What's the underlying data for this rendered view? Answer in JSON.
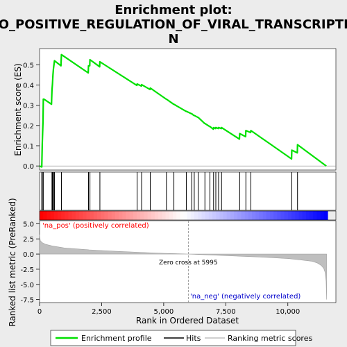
{
  "title_lines": [
    "Enrichment plot:",
    "GO_POSITIVE_REGULATION_OF_VIRAL_TRANSCRIPTIO",
    "N"
  ],
  "colors": {
    "background": "#ececec",
    "es_line": "#00e000",
    "hits": "#000000",
    "ranking_fill": "#bfbfbf",
    "zero_cross_line": "#9f9f9f",
    "pos_label": "#ff0000",
    "neg_label": "#0000cc"
  },
  "chart_data": [
    {
      "type": "line",
      "name": "enrichment-profile",
      "ylabel": "Enrichment score (ES)",
      "xlim": [
        0,
        11600
      ],
      "ylim": [
        -0.02,
        0.58
      ],
      "yticks": [
        {
          "value": 0.0,
          "label": "0.0"
        },
        {
          "value": 0.1,
          "label": "0.1"
        },
        {
          "value": 0.2,
          "label": "0.2"
        },
        {
          "value": 0.3,
          "label": "0.3"
        },
        {
          "value": 0.4,
          "label": "0.4"
        },
        {
          "value": 0.5,
          "label": "0.5"
        }
      ],
      "grid": false,
      "x": [
        0,
        90,
        110,
        140,
        150,
        180,
        480,
        500,
        520,
        540,
        560,
        600,
        860,
        880,
        1960,
        1970,
        2020,
        2030,
        2420,
        2430,
        3920,
        3930,
        4100,
        4110,
        4450,
        4460,
        5100,
        5110,
        5400,
        5410,
        5900,
        5910,
        6120,
        6130,
        6210,
        6230,
        6380,
        6390,
        6650,
        6660,
        6850,
        6860,
        7000,
        7010,
        7090,
        7100,
        7200,
        7210,
        7320,
        7330,
        8050,
        8060,
        8300,
        8310,
        8500,
        8510,
        10150,
        10160,
        10380,
        10390,
        11550
      ],
      "y": [
        0.0,
        -0.005,
        0.11,
        0.22,
        0.33,
        0.33,
        0.305,
        0.375,
        0.405,
        0.45,
        0.48,
        0.52,
        0.495,
        0.55,
        0.46,
        0.495,
        0.495,
        0.525,
        0.49,
        0.515,
        0.398,
        0.405,
        0.395,
        0.402,
        0.378,
        0.385,
        0.33,
        0.33,
        0.305,
        0.305,
        0.27,
        0.27,
        0.258,
        0.258,
        0.25,
        0.25,
        0.24,
        0.24,
        0.21,
        0.21,
        0.195,
        0.195,
        0.182,
        0.19,
        0.185,
        0.19,
        0.185,
        0.19,
        0.185,
        0.19,
        0.133,
        0.16,
        0.145,
        0.175,
        0.165,
        0.175,
        0.035,
        0.078,
        0.065,
        0.105,
        0.0
      ]
    },
    {
      "type": "hits",
      "name": "hits",
      "xlim": [
        0,
        11600
      ],
      "x": [
        90,
        110,
        150,
        500,
        520,
        540,
        560,
        600,
        880,
        1970,
        2030,
        2430,
        3930,
        4110,
        4460,
        5110,
        5410,
        5910,
        6130,
        6230,
        6390,
        6660,
        6860,
        7010,
        7100,
        7210,
        7330,
        8060,
        8310,
        8510,
        10160,
        10390
      ]
    },
    {
      "type": "area",
      "name": "ranked-list-metric",
      "ylabel": "Ranked list metric (PreRanked)",
      "xlabel": "Rank in Ordered Dataset",
      "xlim": [
        0,
        11600
      ],
      "ylim": [
        -8.0,
        5.5
      ],
      "xticks": [
        {
          "value": 0,
          "label": "0"
        },
        {
          "value": 2500,
          "label": "2,500"
        },
        {
          "value": 5000,
          "label": "5,000"
        },
        {
          "value": 7500,
          "label": "7,500"
        },
        {
          "value": 10000,
          "label": "10,000"
        }
      ],
      "yticks": [
        {
          "value": 5.0,
          "label": "5.0"
        },
        {
          "value": 2.5,
          "label": "2.5"
        },
        {
          "value": 0.0,
          "label": "0.0"
        },
        {
          "value": -2.5,
          "label": "-2.5"
        },
        {
          "value": -5.0,
          "label": "-5.0"
        },
        {
          "value": -7.5,
          "label": "-7.5"
        }
      ],
      "x": [
        0,
        30,
        100,
        250,
        500,
        1000,
        2000,
        3000,
        4000,
        5000,
        5995,
        7000,
        8000,
        9000,
        10000,
        10500,
        11000,
        11200,
        11350,
        11450,
        11500,
        11540,
        11560
      ],
      "y": [
        3.2,
        2.2,
        1.9,
        1.6,
        1.35,
        1.0,
        0.7,
        0.48,
        0.3,
        0.12,
        0.0,
        -0.18,
        -0.35,
        -0.52,
        -0.75,
        -0.95,
        -1.2,
        -1.5,
        -1.9,
        -2.4,
        -3.0,
        -4.5,
        -7.5
      ],
      "zero_cross_x": 5995,
      "zero_cross_label": "Zero cross at 5995",
      "pos_label": "'na_pos' (positively correlated)",
      "neg_label": "'na_neg' (negatively correlated)"
    }
  ],
  "legend": {
    "items": [
      {
        "label": "Enrichment profile",
        "swatch": "es"
      },
      {
        "label": "Hits",
        "swatch": "hit"
      },
      {
        "label": "Ranking metric scores",
        "swatch": "rank"
      }
    ]
  }
}
